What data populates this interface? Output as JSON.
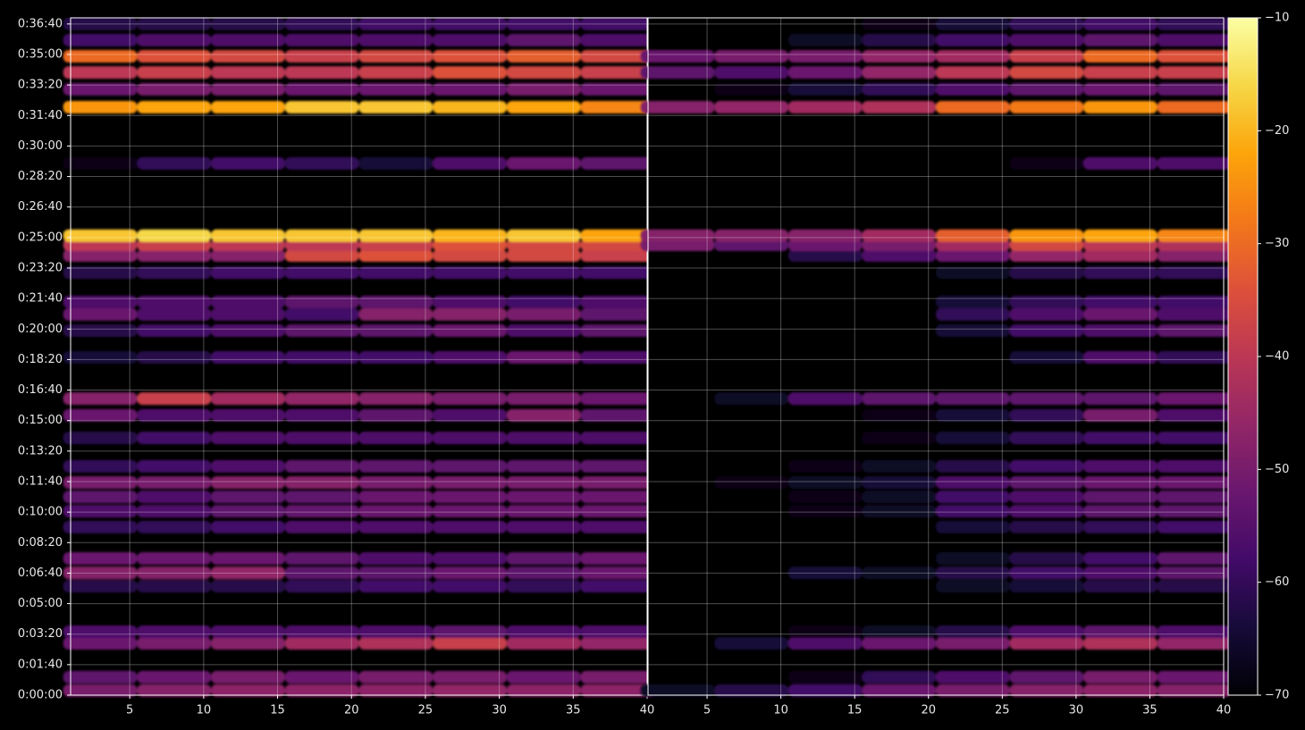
{
  "chart_data": {
    "type": "heatmap",
    "x": [
      3,
      8,
      13,
      18,
      23,
      28,
      33,
      38
    ],
    "y": [
      15,
      59,
      170,
      208,
      357,
      401,
      448,
      551,
      603,
      650,
      697,
      750,
      843,
      917,
      972,
      1107,
      1195,
      1248,
      1289,
      1385,
      1441,
      1476,
      1506,
      1743,
      1927,
      1986,
      2041,
      2094,
      2147,
      2200
    ],
    "xlim": [
      1,
      40
    ],
    "xticks": [
      5,
      10,
      15,
      20,
      25,
      30,
      35,
      40
    ],
    "ylim": [
      0,
      2220
    ],
    "yticks": [
      {
        "value": 0,
        "label": "0:00:00"
      },
      {
        "value": 100,
        "label": "0:01:40"
      },
      {
        "value": 200,
        "label": "0:03:20"
      },
      {
        "value": 300,
        "label": "0:05:00"
      },
      {
        "value": 400,
        "label": "0:06:40"
      },
      {
        "value": 500,
        "label": "0:08:20"
      },
      {
        "value": 600,
        "label": "0:10:00"
      },
      {
        "value": 700,
        "label": "0:11:40"
      },
      {
        "value": 800,
        "label": "0:13:20"
      },
      {
        "value": 900,
        "label": "0:15:00"
      },
      {
        "value": 1000,
        "label": "0:16:40"
      },
      {
        "value": 1100,
        "label": "0:18:20"
      },
      {
        "value": 1200,
        "label": "0:20:00"
      },
      {
        "value": 1300,
        "label": "0:21:40"
      },
      {
        "value": 1400,
        "label": "0:23:20"
      },
      {
        "value": 1500,
        "label": "0:25:00"
      },
      {
        "value": 1600,
        "label": "0:26:40"
      },
      {
        "value": 1700,
        "label": "0:28:20"
      },
      {
        "value": 1800,
        "label": "0:30:00"
      },
      {
        "value": 1900,
        "label": "0:31:40"
      },
      {
        "value": 2000,
        "label": "0:33:20"
      },
      {
        "value": 2100,
        "label": "0:35:00"
      },
      {
        "value": 2200,
        "label": "0:36:40"
      }
    ],
    "zlim": [
      -70,
      -10
    ],
    "zticks": [
      {
        "value": -10,
        "label": "−10"
      },
      {
        "value": -20,
        "label": "−20"
      },
      {
        "value": -30,
        "label": "−30"
      },
      {
        "value": -40,
        "label": "−40"
      },
      {
        "value": -50,
        "label": "−50"
      },
      {
        "value": -60,
        "label": "−60"
      },
      {
        "value": -70,
        "label": "−70"
      }
    ],
    "colormap": "inferno",
    "grid": true,
    "panels": [
      {
        "z": [
          [
            -50,
            -48,
            -47,
            -47,
            -47,
            -46,
            -47,
            -47
          ],
          [
            -54,
            -52,
            -50,
            -52,
            -50,
            -50,
            -52,
            -50
          ],
          [
            -52,
            -50,
            -48,
            -44,
            -42,
            -38,
            -44,
            -46
          ],
          [
            -56,
            -56,
            -56,
            -56,
            -56,
            -54,
            -56,
            -56
          ],
          [
            -62,
            -62,
            -62,
            -60,
            -58,
            -58,
            -60,
            -58
          ],
          [
            -48,
            -48,
            -46,
            -54,
            -54,
            -52,
            -54,
            -52
          ],
          [
            -52,
            -52,
            -52,
            -54,
            -56,
            -56,
            -54,
            -52
          ],
          [
            -60,
            -60,
            -58,
            -56,
            -56,
            -56,
            -56,
            -56
          ],
          [
            -56,
            -56,
            -54,
            -53,
            -52,
            -52,
            -52,
            -52
          ],
          [
            -54,
            -56,
            -54,
            -54,
            -52,
            -52,
            -52,
            -52
          ],
          [
            -50,
            -50,
            -48,
            -48,
            -50,
            -50,
            -50,
            -50
          ],
          [
            -60,
            -58,
            -56,
            -54,
            -54,
            -54,
            -54,
            -54
          ],
          [
            -62,
            -58,
            -56,
            -56,
            -56,
            -56,
            -56,
            -56
          ],
          [
            -52,
            -56,
            -56,
            -56,
            -54,
            -56,
            -48,
            -54
          ],
          [
            -48,
            -38,
            -44,
            -46,
            -48,
            -50,
            -50,
            -52
          ],
          [
            -64,
            -62,
            -58,
            -58,
            -58,
            -56,
            -52,
            -56
          ],
          [
            -62,
            -58,
            -56,
            -54,
            -54,
            -52,
            -56,
            -54
          ],
          [
            -52,
            -56,
            -56,
            -58,
            -48,
            -48,
            -50,
            -54
          ],
          [
            -56,
            -56,
            -56,
            -54,
            -54,
            -56,
            -58,
            -56
          ],
          [
            -62,
            -60,
            -58,
            -58,
            -58,
            -58,
            -58,
            -58
          ],
          [
            -48,
            -48,
            -48,
            -36,
            -34,
            -36,
            -36,
            -38
          ],
          [
            -40,
            -38,
            -40,
            -40,
            -38,
            -34,
            -36,
            -36
          ],
          [
            -18,
            -16,
            -18,
            -18,
            -18,
            -20,
            -18,
            -22
          ],
          [
            -68,
            -60,
            -58,
            -60,
            -64,
            -56,
            -52,
            -54
          ],
          [
            -24,
            -22,
            -22,
            -18,
            -18,
            -20,
            -22,
            -26
          ],
          [
            -52,
            -50,
            -50,
            -52,
            -52,
            -52,
            -50,
            -52
          ],
          [
            -40,
            -38,
            -40,
            -40,
            -38,
            -34,
            -36,
            -38
          ],
          [
            -30,
            -34,
            -36,
            -38,
            -36,
            -34,
            -32,
            -36
          ],
          [
            -58,
            -56,
            -56,
            -56,
            -56,
            -56,
            -54,
            -56
          ],
          [
            -62,
            -62,
            -62,
            -60,
            -58,
            -58,
            -58,
            -58
          ]
        ]
      },
      {
        "z": [
          [
            -66,
            -62,
            -58,
            -52,
            -50,
            -48,
            -47,
            -48
          ],
          [
            -70,
            -70,
            -68,
            -60,
            -56,
            -54,
            -50,
            -52
          ],
          [
            -70,
            -64,
            -56,
            -52,
            -50,
            -44,
            -42,
            -46
          ],
          [
            -70,
            -70,
            -68,
            -66,
            -62,
            -56,
            -54,
            -56
          ],
          [
            -70,
            -70,
            -70,
            -70,
            -66,
            -64,
            -62,
            -62
          ],
          [
            -70,
            -70,
            -64,
            -66,
            -62,
            -58,
            -56,
            -54
          ],
          [
            -70,
            -70,
            -70,
            -70,
            -66,
            -62,
            -58,
            -54
          ],
          [
            -70,
            -70,
            -70,
            -70,
            -64,
            -62,
            -60,
            -58
          ],
          [
            -70,
            -70,
            -68,
            -66,
            -58,
            -56,
            -54,
            -54
          ],
          [
            -70,
            -70,
            -68,
            -66,
            -58,
            -56,
            -54,
            -54
          ],
          [
            -70,
            -68,
            -66,
            -64,
            -56,
            -54,
            -52,
            -52
          ],
          [
            -70,
            -70,
            -68,
            -66,
            -62,
            -58,
            -56,
            -56
          ],
          [
            -70,
            -70,
            -70,
            -68,
            -64,
            -60,
            -58,
            -58
          ],
          [
            -70,
            -70,
            -70,
            -68,
            -64,
            -60,
            -50,
            -56
          ],
          [
            -70,
            -66,
            -56,
            -54,
            -54,
            -54,
            -54,
            -52
          ],
          [
            -70,
            -70,
            -70,
            -70,
            -70,
            -64,
            -56,
            -60
          ],
          [
            -70,
            -70,
            -70,
            -70,
            -64,
            -58,
            -56,
            -54
          ],
          [
            -70,
            -70,
            -70,
            -70,
            -60,
            -56,
            -52,
            -56
          ],
          [
            -70,
            -70,
            -70,
            -70,
            -64,
            -60,
            -58,
            -58
          ],
          [
            -70,
            -70,
            -70,
            -70,
            -66,
            -62,
            -60,
            -60
          ],
          [
            -70,
            -70,
            -62,
            -56,
            -52,
            -46,
            -44,
            -48
          ],
          [
            -50,
            -54,
            -52,
            -50,
            -44,
            -36,
            -40,
            -42
          ],
          [
            -48,
            -48,
            -48,
            -44,
            -32,
            -24,
            -22,
            -26
          ],
          [
            -70,
            -70,
            -70,
            -70,
            -70,
            -68,
            -56,
            -56
          ],
          [
            -48,
            -46,
            -44,
            -42,
            -30,
            -28,
            -24,
            -30
          ],
          [
            -70,
            -68,
            -64,
            -60,
            -56,
            -54,
            -52,
            -54
          ],
          [
            -54,
            -56,
            -52,
            -46,
            -40,
            -36,
            -38,
            -38
          ],
          [
            -52,
            -50,
            -50,
            -46,
            -44,
            -38,
            -30,
            -34
          ],
          [
            -70,
            -70,
            -66,
            -62,
            -58,
            -56,
            -54,
            -56
          ],
          [
            -70,
            -70,
            -70,
            -68,
            -64,
            -60,
            -58,
            -60
          ]
        ]
      }
    ]
  }
}
